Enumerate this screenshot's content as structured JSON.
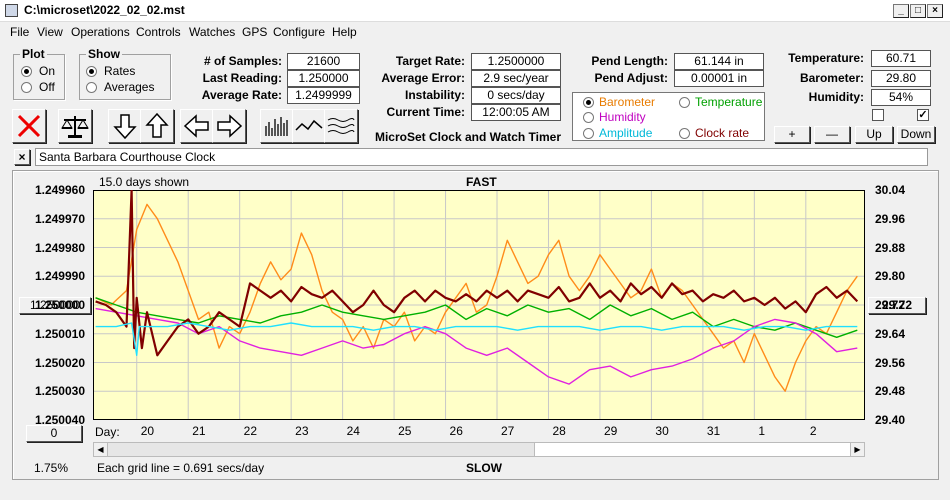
{
  "window": {
    "title": "C:\\microset\\2022_02_02.mst"
  },
  "menu": [
    "File",
    "View",
    "Operations",
    "Controls",
    "Watches",
    "GPS",
    "Configure",
    "Help"
  ],
  "plot_group": {
    "title": "Plot",
    "options": [
      "On",
      "Off"
    ],
    "selected": "On"
  },
  "show_group": {
    "title": "Show",
    "options": [
      "Rates",
      "Averages"
    ],
    "selected": "Rates"
  },
  "stats": [
    {
      "label": "# of Samples:",
      "value": "21600"
    },
    {
      "label": "Last Reading:",
      "value": "1.250000"
    },
    {
      "label": "Average Rate:",
      "value": "1.2499999"
    }
  ],
  "rates": [
    {
      "label": "Target Rate:",
      "value": "1.2500000"
    },
    {
      "label": "Average Error:",
      "value": "2.9 sec/year"
    },
    {
      "label": "Instability:",
      "value": "0 secs/day"
    },
    {
      "label": "Current Time:",
      "value": "12:00:05 AM"
    }
  ],
  "pend": [
    {
      "label": "Pend Length:",
      "value": "61.144 in"
    },
    {
      "label": "Pend Adjust:",
      "value": "0.00001 in"
    }
  ],
  "env": [
    {
      "label": "Temperature:",
      "value": "60.71"
    },
    {
      "label": "Barometer:",
      "value": "29.80"
    },
    {
      "label": "Humidity:",
      "value": "54%"
    }
  ],
  "env_buttons": [
    "+",
    "—",
    "Up",
    "Down"
  ],
  "app_subtitle": "MicroSet Clock and Watch Timer",
  "series_options": [
    {
      "label": "Barometer",
      "color": "#e87b00",
      "selected": true
    },
    {
      "label": "Temperature",
      "color": "#00a000",
      "selected": false
    },
    {
      "label": "Humidity",
      "color": "#c000c0",
      "selected": false
    },
    {
      "label": "Clock rate",
      "color": "#800000",
      "selected": false
    },
    {
      "label": "Amplitude",
      "color": "#00b8d8",
      "selected": false
    }
  ],
  "clock_close": "×",
  "clock_name": "Santa Barbara Courthouse Clock",
  "chart_data": {
    "type": "line",
    "top_label": "FAST",
    "bottom_label": "SLOW",
    "days_shown": "15.0 days shown",
    "grid_note": "Each grid line = 0.691 secs/day",
    "zoom": "1.75%",
    "left_button": "1.250000",
    "right_button": "29.72",
    "scroll_button": "0",
    "x_prefix": "Day:",
    "x_ticks": [
      "20",
      "21",
      "22",
      "23",
      "24",
      "25",
      "26",
      "27",
      "28",
      "29",
      "30",
      "31",
      "1",
      "2"
    ],
    "y_left_ticks": [
      "1.249960",
      "1.249970",
      "1.249980",
      "1.249990",
      "1.250000",
      "1.250010",
      "1.250020",
      "1.250030",
      "1.250040"
    ],
    "y_right_ticks": [
      "30.04",
      "29.96",
      "29.88",
      "29.80",
      "29.72",
      "29.64",
      "29.56",
      "29.48",
      "29.40"
    ],
    "x_range": [
      19.15,
      34.15
    ],
    "y_left_range": [
      1.24996,
      1.25004
    ],
    "y_right_range": [
      29.4,
      30.04
    ],
    "y_left_inverted": true,
    "series": [
      {
        "key": "barometer",
        "color": "#ff8c1a",
        "width": 1.4,
        "x": [
          19.2,
          19.5,
          19.8,
          20.0,
          20.2,
          20.4,
          20.6,
          20.8,
          21.0,
          21.2,
          21.4,
          21.6,
          21.8,
          22.0,
          22.2,
          22.4,
          22.6,
          22.8,
          23.0,
          23.2,
          23.4,
          23.6,
          23.8,
          24.0,
          24.2,
          24.4,
          24.6,
          24.8,
          25.0,
          25.2,
          25.4,
          25.6,
          25.8,
          26.0,
          26.2,
          26.4,
          26.6,
          26.8,
          27.0,
          27.2,
          27.4,
          27.6,
          27.8,
          28.0,
          28.2,
          28.4,
          28.6,
          28.8,
          29.0,
          29.2,
          29.4,
          29.6,
          29.8,
          30.0,
          30.2,
          30.4,
          30.6,
          30.8,
          31.0,
          31.2,
          31.4,
          31.6,
          31.8,
          32.0,
          32.2,
          32.4,
          32.6,
          32.8,
          33.0,
          33.2,
          33.4,
          33.6,
          33.8,
          34.0
        ],
        "y": [
          29.74,
          29.72,
          29.76,
          29.93,
          30.0,
          29.96,
          29.9,
          29.84,
          29.76,
          29.68,
          29.7,
          29.6,
          29.66,
          29.64,
          29.7,
          29.78,
          29.84,
          29.79,
          29.82,
          29.92,
          29.86,
          29.76,
          29.7,
          29.68,
          29.62,
          29.66,
          29.6,
          29.68,
          29.66,
          29.7,
          29.62,
          29.66,
          29.64,
          29.7,
          29.74,
          29.78,
          29.7,
          29.72,
          29.8,
          29.9,
          29.84,
          29.78,
          29.8,
          29.86,
          29.9,
          29.8,
          29.76,
          29.8,
          29.86,
          29.82,
          29.78,
          29.74,
          29.76,
          29.82,
          29.74,
          29.78,
          29.76,
          29.72,
          29.68,
          29.64,
          29.6,
          29.62,
          29.56,
          29.64,
          29.58,
          29.52,
          29.48,
          29.56,
          29.62,
          29.66,
          29.64,
          29.7,
          29.76,
          29.8
        ]
      },
      {
        "key": "temperature",
        "color": "#00b000",
        "width": 1.4,
        "x": [
          19.2,
          19.6,
          20.0,
          20.4,
          20.8,
          21.2,
          21.6,
          22.0,
          22.4,
          22.8,
          23.2,
          23.6,
          24.0,
          24.4,
          24.8,
          25.2,
          25.6,
          26.0,
          26.4,
          26.8,
          27.2,
          27.6,
          28.0,
          28.4,
          28.8,
          29.2,
          29.6,
          30.0,
          30.4,
          30.8,
          31.2,
          31.6,
          32.0,
          32.4,
          32.8,
          33.2,
          33.6,
          34.0
        ],
        "y": [
          29.74,
          29.72,
          29.7,
          29.69,
          29.68,
          29.67,
          29.69,
          29.68,
          29.67,
          29.69,
          29.7,
          29.72,
          29.7,
          29.69,
          29.68,
          29.69,
          29.7,
          29.72,
          29.68,
          29.71,
          29.69,
          29.72,
          29.7,
          29.71,
          29.68,
          29.72,
          29.69,
          29.71,
          29.68,
          29.7,
          29.66,
          29.68,
          29.66,
          29.65,
          29.67,
          29.65,
          29.63,
          29.65
        ]
      },
      {
        "key": "humidity",
        "color": "#e020e0",
        "width": 1.4,
        "x": [
          19.2,
          19.6,
          20.0,
          20.4,
          20.8,
          21.2,
          21.6,
          22.0,
          22.4,
          22.8,
          23.2,
          23.6,
          24.0,
          24.4,
          24.8,
          25.2,
          25.6,
          26.0,
          26.4,
          26.8,
          27.2,
          27.6,
          28.0,
          28.4,
          28.8,
          29.2,
          29.6,
          30.0,
          30.4,
          30.8,
          31.2,
          31.6,
          32.0,
          32.4,
          32.8,
          33.2,
          33.6,
          34.0
        ],
        "y": [
          29.71,
          29.7,
          29.69,
          29.68,
          29.67,
          29.64,
          29.66,
          29.62,
          29.6,
          29.59,
          29.58,
          29.6,
          29.62,
          29.6,
          29.61,
          29.64,
          29.66,
          29.64,
          29.6,
          29.58,
          29.6,
          29.56,
          29.52,
          29.5,
          29.54,
          29.55,
          29.52,
          29.54,
          29.55,
          29.57,
          29.6,
          29.62,
          29.66,
          29.68,
          29.67,
          29.64,
          29.59,
          29.6
        ]
      },
      {
        "key": "clock_rate",
        "color": "#800000",
        "width": 2.2,
        "x": [
          19.2,
          19.4,
          19.6,
          19.8,
          19.9,
          19.95,
          20.0,
          20.1,
          20.2,
          20.4,
          20.6,
          20.8,
          21.0,
          21.2,
          21.4,
          21.6,
          21.8,
          22.0,
          22.2,
          22.4,
          22.6,
          22.8,
          23.0,
          23.2,
          23.4,
          23.6,
          23.8,
          24.0,
          24.2,
          24.4,
          24.6,
          24.8,
          25.0,
          25.2,
          25.4,
          25.6,
          25.8,
          26.0,
          26.2,
          26.4,
          26.6,
          26.8,
          27.0,
          27.2,
          27.4,
          27.6,
          27.8,
          28.0,
          28.2,
          28.4,
          28.6,
          28.8,
          29.0,
          29.2,
          29.4,
          29.6,
          29.8,
          30.0,
          30.2,
          30.4,
          30.6,
          30.8,
          31.0,
          31.2,
          31.4,
          31.6,
          31.8,
          32.0,
          32.2,
          32.4,
          32.6,
          32.8,
          33.0,
          33.2,
          33.4,
          33.6,
          33.8,
          34.0
        ],
        "y": [
          29.73,
          29.72,
          29.7,
          29.66,
          30.04,
          29.6,
          29.74,
          29.6,
          29.7,
          29.58,
          29.62,
          29.66,
          29.68,
          29.64,
          29.66,
          29.7,
          29.68,
          29.66,
          29.78,
          29.76,
          29.74,
          29.76,
          29.73,
          29.77,
          29.75,
          29.74,
          29.76,
          29.73,
          29.7,
          29.72,
          29.76,
          29.72,
          29.7,
          29.74,
          29.76,
          29.73,
          29.76,
          29.74,
          29.73,
          29.75,
          29.73,
          29.76,
          29.74,
          29.76,
          29.73,
          29.76,
          29.75,
          29.74,
          29.77,
          29.73,
          29.74,
          29.78,
          29.74,
          29.76,
          29.73,
          29.78,
          29.75,
          29.77,
          29.74,
          29.78,
          29.75,
          29.76,
          29.73,
          29.75,
          29.74,
          29.76,
          29.73,
          29.74,
          29.72,
          29.74,
          29.71,
          29.73,
          29.7,
          29.75,
          29.77,
          29.74,
          29.76,
          29.73
        ]
      },
      {
        "key": "amplitude",
        "color": "#20e0ff",
        "width": 1.4,
        "x": [
          19.2,
          19.6,
          19.9,
          20.0,
          20.05,
          20.2,
          20.6,
          21.0,
          21.4,
          21.8,
          22.2,
          22.6,
          23.0,
          23.4,
          23.8,
          24.2,
          24.6,
          25.0,
          25.4,
          25.8,
          26.2,
          26.6,
          27.0,
          27.4,
          27.8,
          28.2,
          28.6,
          29.0,
          29.4,
          29.8,
          30.2,
          30.6,
          31.0,
          31.4,
          31.8,
          32.2,
          32.6,
          33.0,
          33.4,
          33.8,
          34.0
        ],
        "y": [
          29.66,
          29.66,
          29.67,
          29.58,
          29.66,
          29.66,
          29.66,
          29.67,
          29.66,
          29.65,
          29.66,
          29.66,
          29.67,
          29.66,
          29.66,
          29.66,
          29.65,
          29.66,
          29.66,
          29.65,
          29.66,
          29.66,
          29.66,
          29.65,
          29.66,
          29.66,
          29.66,
          29.65,
          29.66,
          29.66,
          29.65,
          29.66,
          29.66,
          29.66,
          29.65,
          29.66,
          29.66,
          29.65,
          29.66,
          29.66,
          29.66
        ]
      }
    ]
  }
}
